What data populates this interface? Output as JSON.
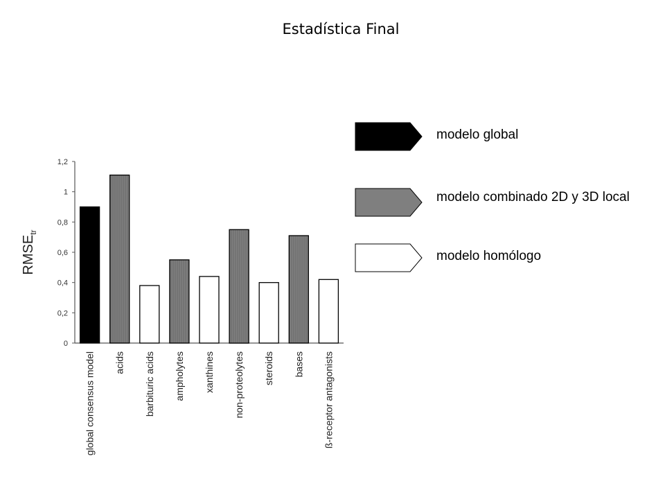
{
  "slide": {
    "title": "Estadística Final"
  },
  "chart_data": {
    "type": "bar",
    "ylabel": "RMSE",
    "ylabel_subscript": "tr",
    "ylim": [
      0,
      1.2
    ],
    "yticks": [
      "0",
      "0,2",
      "0,4",
      "0,6",
      "0,8",
      "1",
      "1,2"
    ],
    "ytick_values": [
      0,
      0.2,
      0.4,
      0.6,
      0.8,
      1.0,
      1.2
    ],
    "categories": [
      "global consensus model",
      "acids",
      "barbituric acids",
      "ampholytes",
      "xanthines",
      "non-proteolytes",
      "steroids",
      "bases",
      "ß-receptor antagonists"
    ],
    "values": [
      0.9,
      1.11,
      0.38,
      0.55,
      0.44,
      0.75,
      0.4,
      0.71,
      0.42
    ],
    "bar_types": [
      "global",
      "combined",
      "homologous",
      "combined",
      "homologous",
      "combined",
      "homologous",
      "combined",
      "homologous"
    ],
    "colors": {
      "global": "#000000",
      "combined": "#7f7f7f",
      "homologous": "#ffffff"
    }
  },
  "legend": [
    {
      "label": "modelo global",
      "type": "global"
    },
    {
      "label": "modelo combinado 2D y 3D local",
      "type": "combined"
    },
    {
      "label": "modelo homólogo",
      "type": "homologous"
    }
  ]
}
